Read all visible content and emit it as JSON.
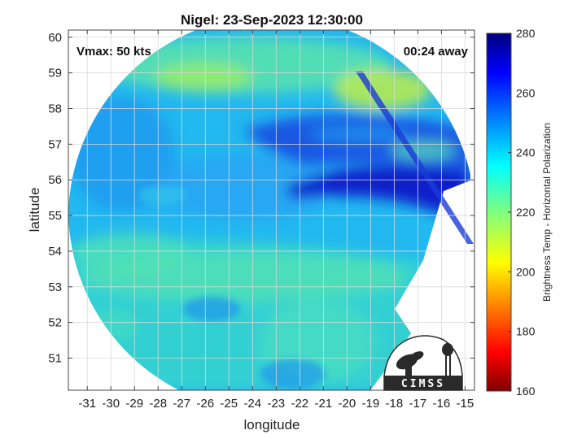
{
  "title": "Nigel: 23-Sep-2023 12:30:00",
  "annotations": {
    "vmax": "Vmax: 50 kts",
    "time_away": "00:24 away"
  },
  "axes": {
    "xlabel": "longitude",
    "ylabel": "latitude",
    "xticks": [
      -31,
      -30,
      -29,
      -28,
      -27,
      -26,
      -25,
      -24,
      -23,
      -22,
      -21,
      -20,
      -19,
      -18,
      -17,
      -16,
      -15
    ],
    "yticks": [
      51,
      52,
      53,
      54,
      55,
      56,
      57,
      58,
      59,
      60
    ],
    "xlim": [
      -31.8,
      -14.6
    ],
    "ylim": [
      50.1,
      60.2
    ],
    "grid": true
  },
  "colorbar": {
    "label": "Brightness Temp - Horizontal Polarization",
    "ticks": [
      160,
      180,
      200,
      220,
      240,
      260,
      280
    ],
    "range": [
      160,
      280
    ],
    "colormap": "jet"
  },
  "logo": {
    "text": "CIMSS"
  },
  "colors": {
    "background": "#ffffff",
    "grid": "#d9d9d9",
    "axis": "#444444"
  }
}
